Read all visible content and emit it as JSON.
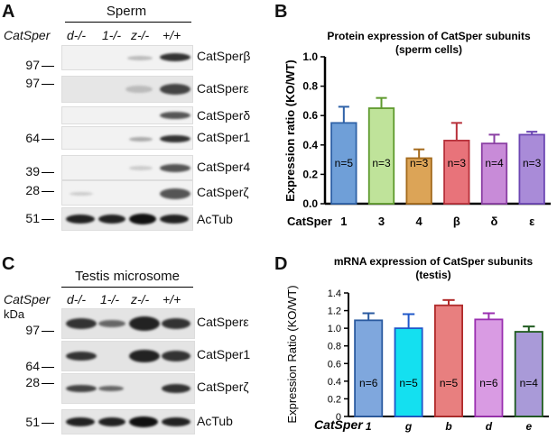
{
  "panel_a": {
    "label": "A",
    "header": "Sperm",
    "row_label": "CatSper",
    "lanes": [
      "d-/-",
      "1-/-",
      "z-/-",
      "+/+"
    ],
    "mw_markers": [
      "97",
      "97",
      "64",
      "39",
      "28",
      "51"
    ],
    "bands": [
      "CatSperβ",
      "CatSperε",
      "CatSperδ",
      "CatSper1",
      "CatSper4",
      "CatSperζ",
      "AcTub"
    ]
  },
  "panel_c": {
    "label": "C",
    "header": "Testis microsome",
    "row_label": "CatSper",
    "kda_label": "kDa",
    "lanes": [
      "d-/-",
      "1-/-",
      "z-/-",
      "+/+"
    ],
    "mw_markers": [
      "97",
      "64",
      "28",
      "51"
    ],
    "bands": [
      "CatSperε",
      "CatSper1",
      "CatSperζ",
      "AcTub"
    ]
  },
  "panel_b": {
    "label": "B",
    "chart_data": {
      "type": "bar",
      "title": "Protein expression of CatSper subunits",
      "subtitle": "(sperm cells)",
      "ylabel": "Expression ratio (KO/WT)",
      "x_axis_label": "CatSper",
      "categories": [
        "1",
        "3",
        "4",
        "β",
        "δ",
        "ε"
      ],
      "values": [
        0.55,
        0.65,
        0.31,
        0.43,
        0.41,
        0.47
      ],
      "errors": [
        0.11,
        0.07,
        0.06,
        0.12,
        0.06,
        0.02
      ],
      "n_labels": [
        "n=5",
        "n=3",
        "n=3",
        "n=3",
        "n=4",
        "n=3"
      ],
      "ylim": [
        0,
        1.0
      ],
      "yticks": [
        "0.0",
        "0.2",
        "0.4",
        "0.6",
        "0.8",
        "1.0"
      ],
      "colors": [
        "#6f9fd8",
        "#bfe39a",
        "#dca457",
        "#e8737a",
        "#c88bd8",
        "#a98bd8"
      ],
      "edge_colors": [
        "#2f62a8",
        "#5f9a2e",
        "#a46a1c",
        "#b8313b",
        "#8a3fa3",
        "#6c46b3"
      ]
    }
  },
  "panel_d": {
    "label": "D",
    "chart_data": {
      "type": "bar",
      "title": "mRNA expression of CatSper subunits",
      "subtitle": "(testis)",
      "ylabel": "Expression Ratio (KO/WT)",
      "x_axis_label": "CatSper",
      "categories": [
        "1",
        "g",
        "b",
        "d",
        "e"
      ],
      "values": [
        1.09,
        1.0,
        1.26,
        1.1,
        0.96
      ],
      "errors": [
        0.08,
        0.16,
        0.06,
        0.07,
        0.06
      ],
      "n_labels": [
        "n=6",
        "n=5",
        "n=5",
        "n=6",
        "n=4"
      ],
      "ylim": [
        0,
        1.4
      ],
      "yticks": [
        "0",
        "0.2",
        "0.4",
        "0.6",
        "0.8",
        "1.0",
        "1.2",
        "1.4"
      ],
      "colors": [
        "#7fa7dd",
        "#14e0f0",
        "#e87f7f",
        "#d99be3",
        "#a99ad8"
      ],
      "edge_colors": [
        "#2a5aa0",
        "#1f57c9",
        "#b02a2a",
        "#9a2fb0",
        "#1e5a1e"
      ]
    }
  }
}
